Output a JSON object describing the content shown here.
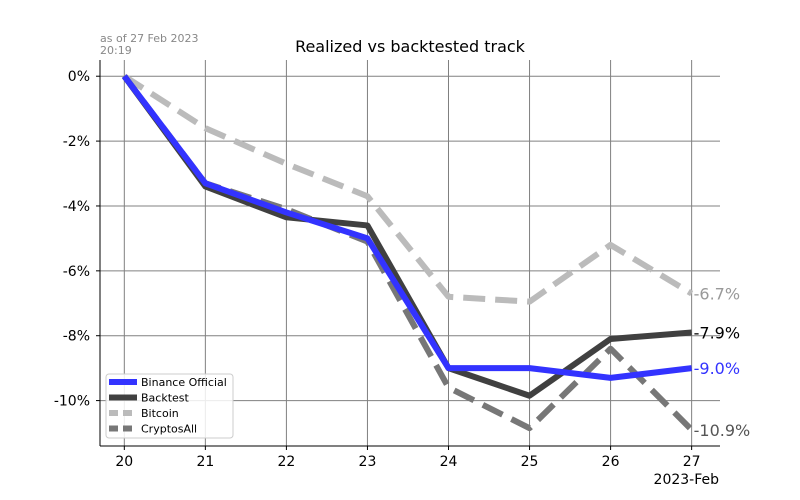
{
  "stamp": {
    "line1": "as of 27 Feb 2023",
    "line2": "20:19"
  },
  "chart_data": {
    "type": "line",
    "title": "Realized vs backtested track",
    "xlabel": "2023-Feb",
    "ylabel": "",
    "x": [
      20,
      21,
      22,
      23,
      24,
      25,
      26,
      27
    ],
    "x_tick_labels": [
      "20",
      "21",
      "22",
      "23",
      "24",
      "25",
      "26",
      "27"
    ],
    "xlim": [
      19.7,
      27.35
    ],
    "ylim": [
      -11.4,
      0.5
    ],
    "y_ticks": [
      0,
      -2,
      -4,
      -6,
      -8,
      -10
    ],
    "y_tick_labels": [
      "0%",
      "-2%",
      "-4%",
      "-6%",
      "-8%",
      "-10%"
    ],
    "grid": true,
    "legend_placement": "lower-left",
    "series": [
      {
        "name": "Binance Official",
        "color": "#3333ff",
        "style": "solid",
        "values": [
          0,
          -3.3,
          -4.2,
          -5.0,
          -9.0,
          -9.0,
          -9.3,
          -9.0
        ],
        "end_label": "-9.0%"
      },
      {
        "name": "Backtest",
        "color": "#404040",
        "style": "solid",
        "values": [
          0,
          -3.4,
          -4.35,
          -4.6,
          -9.0,
          -9.85,
          -8.1,
          -7.9
        ],
        "end_label": "-7.9%"
      },
      {
        "name": "Bitcoin",
        "color": "#bbbbbb",
        "style": "dashed",
        "values": [
          0,
          -1.6,
          -2.7,
          -3.7,
          -6.8,
          -6.95,
          -5.2,
          -6.7
        ],
        "end_label": "-6.7%"
      },
      {
        "name": "CryptosAll",
        "color": "#777777",
        "style": "dashed",
        "values": [
          0,
          -3.3,
          -4.1,
          -5.1,
          -9.6,
          -10.85,
          -8.4,
          -10.9
        ],
        "end_label": "-10.9%"
      }
    ]
  }
}
